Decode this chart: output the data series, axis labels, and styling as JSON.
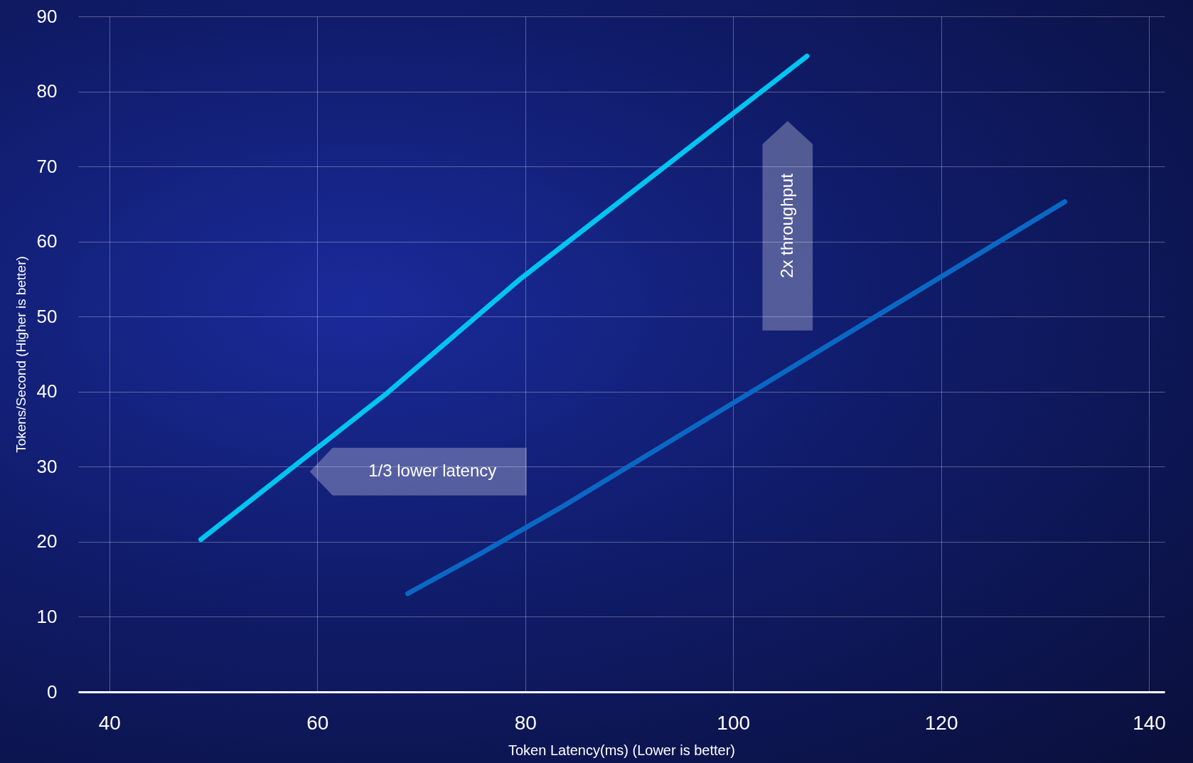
{
  "chart_data": {
    "type": "line",
    "xlabel": "Token Latency(ms) (Lower is better)",
    "ylabel": "Tokens/Second (Higher is better)",
    "xlim": [
      37,
      141.5
    ],
    "xticks": [
      40,
      60,
      80,
      100,
      120,
      140
    ],
    "ylim": [
      0,
      90
    ],
    "yticks": [
      0,
      10,
      20,
      30,
      40,
      50,
      60,
      70,
      80,
      90
    ],
    "grid": true,
    "line_style": "solid",
    "series": [
      {
        "color": "#00c4f2",
        "x": [
          48.8,
          66.7,
          79.6,
          107.1
        ],
        "values": [
          20.3,
          39.8,
          55.1,
          84.7
        ]
      },
      {
        "color": "#0a68c4",
        "x": [
          68.7,
          75.8,
          83.6,
          131.9
        ],
        "values": [
          13.1,
          18.5,
          24.7,
          65.3
        ]
      }
    ],
    "annotations": [
      "1/3 lower latency",
      "2x throughput"
    ]
  }
}
